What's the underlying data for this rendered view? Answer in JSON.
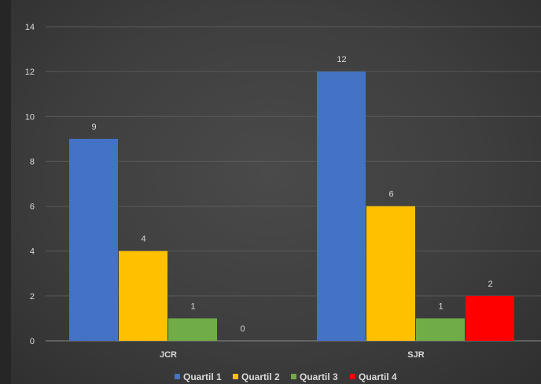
{
  "chart_data": {
    "type": "bar",
    "title": "",
    "xlabel": "",
    "ylabel": "",
    "categories": [
      "JCR",
      "SJR"
    ],
    "series": [
      {
        "name": "Quartil 1",
        "values": [
          9,
          12
        ],
        "color": "#4472c4"
      },
      {
        "name": "Quartil 2",
        "values": [
          4,
          6
        ],
        "color": "#ffc000"
      },
      {
        "name": "Quartil 3",
        "values": [
          1,
          1
        ],
        "color": "#70ad47"
      },
      {
        "name": "Quartil 4",
        "values": [
          0,
          2
        ],
        "color": "#ff0000"
      }
    ],
    "ylim": [
      0,
      14
    ],
    "yticks": [
      0,
      2,
      4,
      6,
      8,
      10,
      12,
      14
    ],
    "data_labels": true,
    "grid": true,
    "legend": "bottom-center",
    "colors": {
      "background": "#3e3e3e",
      "gridline": "#5a5a5a",
      "axis": "#8c8c8c",
      "text": "#d9d9d9"
    }
  }
}
